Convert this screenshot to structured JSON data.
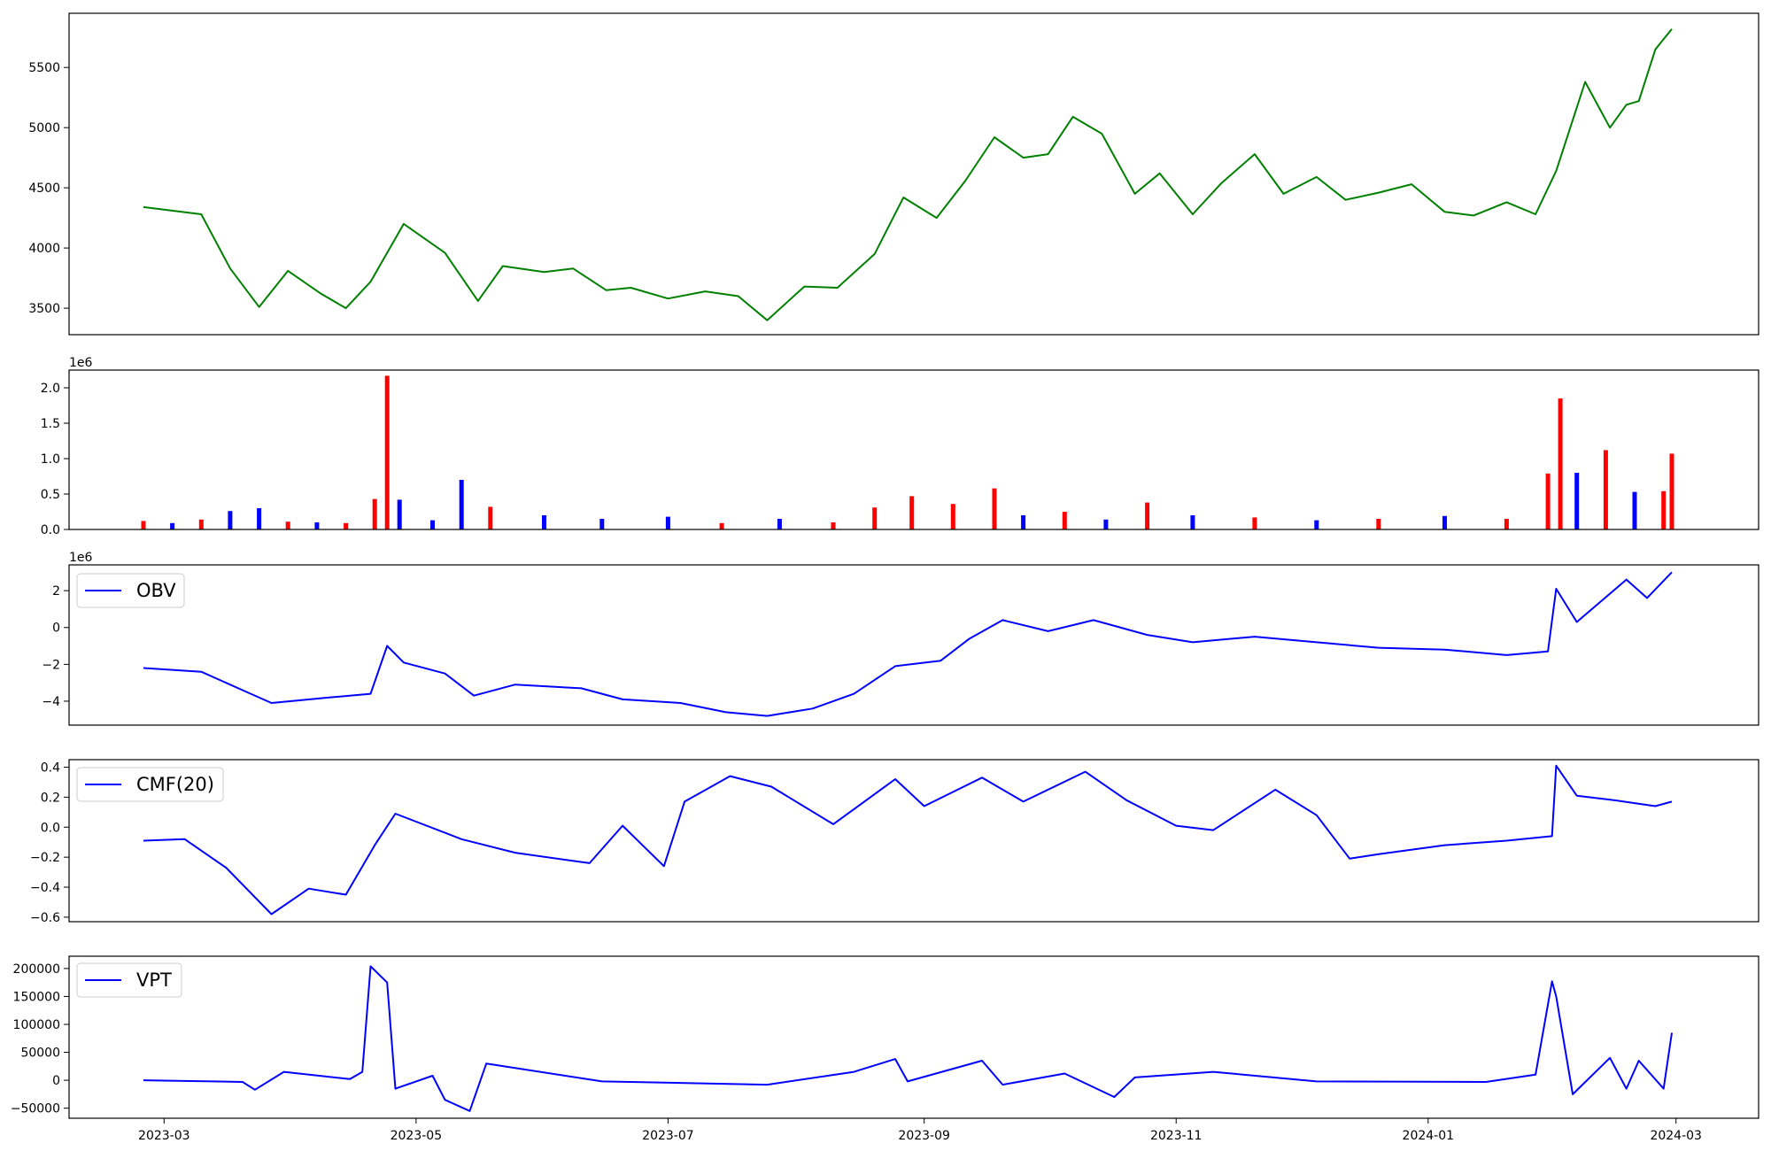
{
  "chart_data": [
    {
      "type": "line",
      "title": "",
      "xlabel": "",
      "ylabel": "",
      "ylim": [
        3280,
        5950
      ],
      "yticks": [
        3500,
        4000,
        4500,
        5000,
        5500
      ],
      "series": [
        {
          "color": "#008000",
          "x": [
            "2023-02-24",
            "2023-03-10",
            "2023-03-17",
            "2023-03-24",
            "2023-03-31",
            "2023-04-08",
            "2023-04-14",
            "2023-04-20",
            "2023-04-28",
            "2023-05-08",
            "2023-05-16",
            "2023-05-22",
            "2023-06-01",
            "2023-06-08",
            "2023-06-16",
            "2023-06-22",
            "2023-07-01",
            "2023-07-10",
            "2023-07-18",
            "2023-07-25",
            "2023-08-03",
            "2023-08-11",
            "2023-08-20",
            "2023-08-27",
            "2023-09-04",
            "2023-09-11",
            "2023-09-18",
            "2023-09-25",
            "2023-10-01",
            "2023-10-07",
            "2023-10-14",
            "2023-10-22",
            "2023-10-28",
            "2023-11-05",
            "2023-11-12",
            "2023-11-20",
            "2023-11-27",
            "2023-12-05",
            "2023-12-12",
            "2023-12-20",
            "2023-12-28",
            "2024-01-05",
            "2024-01-12",
            "2024-01-20",
            "2024-01-27",
            "2024-02-01",
            "2024-02-08",
            "2024-02-14",
            "2024-02-18",
            "2024-02-21",
            "2024-02-25",
            "2024-02-29"
          ],
          "y": [
            4340,
            4280,
            3830,
            3510,
            3810,
            3620,
            3500,
            3720,
            4200,
            3960,
            3560,
            3850,
            3800,
            3830,
            3650,
            3670,
            3580,
            3640,
            3600,
            3400,
            3680,
            3670,
            3950,
            4420,
            4250,
            4560,
            4920,
            4750,
            4780,
            5090,
            4950,
            4450,
            4620,
            4280,
            4540,
            4780,
            4450,
            4590,
            4400,
            4460,
            4530,
            4300,
            4270,
            4380,
            4280,
            4640,
            5380,
            5000,
            5190,
            5220,
            5650,
            5820
          ]
        }
      ]
    },
    {
      "type": "bar",
      "title": "",
      "offset_label": "1e6",
      "ylim": [
        0,
        2250000
      ],
      "yticks": [
        0,
        500000,
        1000000,
        1500000,
        2000000
      ],
      "yticklabels": [
        "0.0",
        "0.5",
        "1.0",
        "1.5",
        "2.0"
      ],
      "colors": {
        "up": "#ff0000",
        "down": "#0000ff",
        "flat": "#000000"
      },
      "series": [
        {
          "x": [
            "2023-02-24",
            "2023-03-03",
            "2023-03-10",
            "2023-03-17",
            "2023-03-24",
            "2023-03-31",
            "2023-04-07",
            "2023-04-14",
            "2023-04-21",
            "2023-04-24",
            "2023-04-27",
            "2023-05-05",
            "2023-05-12",
            "2023-05-19",
            "2023-06-01",
            "2023-06-15",
            "2023-07-01",
            "2023-07-14",
            "2023-07-28",
            "2023-08-10",
            "2023-08-20",
            "2023-08-29",
            "2023-09-08",
            "2023-09-18",
            "2023-09-25",
            "2023-10-05",
            "2023-10-15",
            "2023-10-25",
            "2023-11-05",
            "2023-11-20",
            "2023-12-05",
            "2023-12-20",
            "2024-01-05",
            "2024-01-20",
            "2024-01-30",
            "2024-02-02",
            "2024-02-06",
            "2024-02-13",
            "2024-02-20",
            "2024-02-27",
            "2024-02-29"
          ],
          "values": [
            120000,
            90000,
            140000,
            260000,
            300000,
            110000,
            100000,
            90000,
            430000,
            2170000,
            420000,
            130000,
            700000,
            320000,
            200000,
            150000,
            180000,
            90000,
            150000,
            100000,
            310000,
            470000,
            360000,
            580000,
            200000,
            250000,
            140000,
            380000,
            200000,
            170000,
            130000,
            150000,
            190000,
            150000,
            790000,
            1850000,
            800000,
            1120000,
            530000,
            540000,
            1070000
          ],
          "direction": [
            "up",
            "down",
            "up",
            "down",
            "down",
            "up",
            "down",
            "up",
            "up",
            "up",
            "down",
            "down",
            "down",
            "up",
            "down",
            "down",
            "down",
            "up",
            "down",
            "up",
            "up",
            "up",
            "up",
            "up",
            "down",
            "up",
            "down",
            "up",
            "down",
            "up",
            "down",
            "up",
            "down",
            "up",
            "up",
            "up",
            "down",
            "up",
            "down",
            "up",
            "up"
          ]
        }
      ]
    },
    {
      "type": "line",
      "offset_label": "1e6",
      "ylim": [
        -5300000,
        3400000
      ],
      "yticks": [
        -4000000,
        -2000000,
        0,
        2000000
      ],
      "yticklabels": [
        "−4",
        "−2",
        "0",
        "2"
      ],
      "legend": "upper left",
      "series": [
        {
          "name": "OBV",
          "color": "#0000ff",
          "x": [
            "2023-02-24",
            "2023-03-10",
            "2023-03-20",
            "2023-03-27",
            "2023-04-10",
            "2023-04-20",
            "2023-04-24",
            "2023-04-28",
            "2023-05-08",
            "2023-05-15",
            "2023-05-25",
            "2023-06-10",
            "2023-06-20",
            "2023-07-04",
            "2023-07-15",
            "2023-07-25",
            "2023-08-05",
            "2023-08-15",
            "2023-08-25",
            "2023-09-05",
            "2023-09-12",
            "2023-09-20",
            "2023-10-01",
            "2023-10-12",
            "2023-10-25",
            "2023-11-05",
            "2023-11-20",
            "2023-12-05",
            "2023-12-20",
            "2024-01-05",
            "2024-01-20",
            "2024-01-30",
            "2024-02-01",
            "2024-02-06",
            "2024-02-18",
            "2024-02-23",
            "2024-02-29"
          ],
          "y": [
            -2200000,
            -2400000,
            -3400000,
            -4100000,
            -3800000,
            -3600000,
            -1000000,
            -1900000,
            -2500000,
            -3700000,
            -3100000,
            -3300000,
            -3900000,
            -4100000,
            -4600000,
            -4800000,
            -4400000,
            -3600000,
            -2100000,
            -1800000,
            -600000,
            400000,
            -200000,
            400000,
            -400000,
            -800000,
            -500000,
            -800000,
            -1100000,
            -1200000,
            -1500000,
            -1300000,
            2100000,
            300000,
            2600000,
            1600000,
            3000000
          ]
        }
      ]
    },
    {
      "type": "line",
      "ylim": [
        -0.63,
        0.45
      ],
      "yticks": [
        -0.6,
        -0.4,
        -0.2,
        0.0,
        0.2,
        0.4
      ],
      "yticklabels": [
        "−0.6",
        "−0.4",
        "−0.2",
        "0.0",
        "0.2",
        "0.4"
      ],
      "legend": "upper left",
      "series": [
        {
          "name": "CMF(20)",
          "color": "#0000ff",
          "x": [
            "2023-02-24",
            "2023-03-06",
            "2023-03-16",
            "2023-03-27",
            "2023-04-05",
            "2023-04-14",
            "2023-04-21",
            "2023-04-26",
            "2023-05-12",
            "2023-05-25",
            "2023-06-12",
            "2023-06-20",
            "2023-06-30",
            "2023-07-05",
            "2023-07-16",
            "2023-07-26",
            "2023-08-10",
            "2023-08-25",
            "2023-09-01",
            "2023-09-15",
            "2023-09-25",
            "2023-10-10",
            "2023-10-20",
            "2023-11-01",
            "2023-11-10",
            "2023-11-25",
            "2023-12-05",
            "2023-12-13",
            "2023-12-20",
            "2024-01-05",
            "2024-01-20",
            "2024-01-31",
            "2024-02-01",
            "2024-02-06",
            "2024-02-15",
            "2024-02-25",
            "2024-02-29"
          ],
          "y": [
            -0.09,
            -0.08,
            -0.27,
            -0.58,
            -0.41,
            -0.45,
            -0.12,
            0.09,
            -0.08,
            -0.17,
            -0.24,
            0.01,
            -0.26,
            0.17,
            0.34,
            0.27,
            0.02,
            0.32,
            0.14,
            0.33,
            0.17,
            0.37,
            0.18,
            0.01,
            -0.02,
            0.25,
            0.08,
            -0.21,
            -0.18,
            -0.12,
            -0.09,
            -0.06,
            0.41,
            0.21,
            0.18,
            0.14,
            0.17
          ]
        }
      ]
    },
    {
      "type": "line",
      "ylim": [
        -68000,
        222000
      ],
      "yticks": [
        -50000,
        0,
        50000,
        100000,
        150000,
        200000
      ],
      "yticklabels": [
        "−50000",
        "0",
        "50000",
        "100000",
        "150000",
        "200000"
      ],
      "xlim": [
        "2023-02-06",
        "2024-03-21"
      ],
      "xticks": [
        "2023-03-01",
        "2023-05-01",
        "2023-07-01",
        "2023-09-01",
        "2023-11-01",
        "2024-01-01",
        "2024-03-01"
      ],
      "xticklabels": [
        "2023-03",
        "2023-05",
        "2023-07",
        "2023-09",
        "2023-11",
        "2024-01",
        "2024-03"
      ],
      "legend": "upper left",
      "series": [
        {
          "name": "VPT",
          "color": "#0000ff",
          "x": [
            "2023-02-24",
            "2023-03-20",
            "2023-03-23",
            "2023-03-30",
            "2023-04-15",
            "2023-04-18",
            "2023-04-20",
            "2023-04-24",
            "2023-04-26",
            "2023-05-05",
            "2023-05-08",
            "2023-05-14",
            "2023-05-18",
            "2023-06-15",
            "2023-07-25",
            "2023-08-15",
            "2023-08-25",
            "2023-08-28",
            "2023-09-15",
            "2023-09-20",
            "2023-10-05",
            "2023-10-17",
            "2023-10-22",
            "2023-11-10",
            "2023-12-05",
            "2024-01-15",
            "2024-01-27",
            "2024-01-31",
            "2024-02-01",
            "2024-02-05",
            "2024-02-14",
            "2024-02-18",
            "2024-02-21",
            "2024-02-27",
            "2024-02-29"
          ],
          "y": [
            0,
            -3000,
            -17000,
            15000,
            2000,
            15000,
            204000,
            175000,
            -15000,
            8000,
            -35000,
            -55000,
            30000,
            -2000,
            -8000,
            15000,
            38000,
            -2000,
            35000,
            -8000,
            12000,
            -30000,
            5000,
            15000,
            -2000,
            -3000,
            10000,
            177000,
            150000,
            -25000,
            40000,
            -15000,
            35000,
            -15000,
            85000
          ]
        }
      ]
    }
  ]
}
